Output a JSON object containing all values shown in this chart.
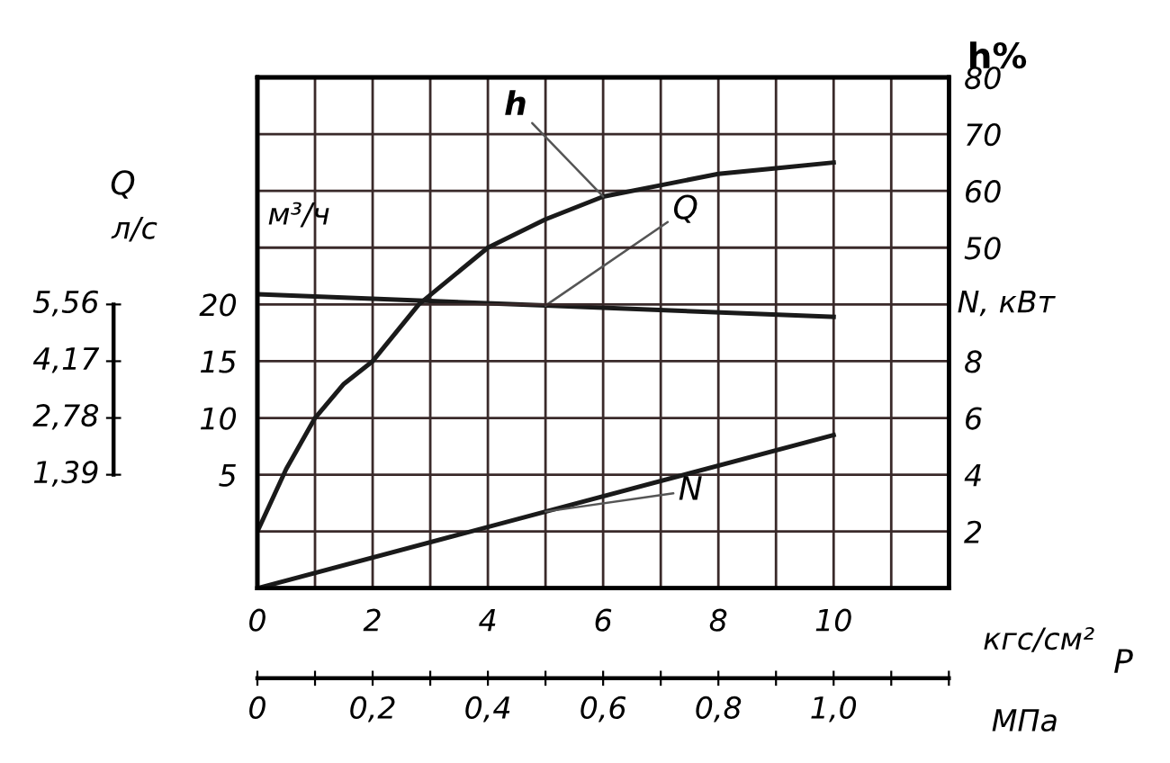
{
  "chart_data": {
    "type": "line",
    "xlabel": "кгс/см²",
    "ylabel": "м³/ч",
    "y2label": "h%",
    "y3label": "N, кВт",
    "x2label": "МПа",
    "annotations": [
      "Q",
      "P",
      "л/с",
      "1,39",
      "2,78",
      "4,17",
      "5,56"
    ],
    "x": [
      0,
      0.5,
      1,
      1.5,
      2,
      2.8,
      4,
      5,
      6,
      7,
      8,
      9,
      10
    ],
    "series": [
      {
        "name": "h",
        "color": "#1a1a1a",
        "axis": "y2",
        "values": [
          0,
          11,
          20,
          26,
          30,
          40,
          50,
          55,
          59,
          61,
          63,
          64,
          65
        ]
      },
      {
        "name": "Q",
        "color": "#1a1a1a",
        "axis": "y",
        "x": [
          0,
          5,
          10
        ],
        "values": [
          20.9,
          19.9,
          18.9
        ]
      },
      {
        "name": "N",
        "color": "#1a1a1a",
        "axis": "y3",
        "x": [
          0,
          5,
          10
        ],
        "values": [
          0,
          2.7,
          5.4
        ]
      }
    ],
    "xlim": [
      0,
      12
    ],
    "xticks": [
      0,
      {
        "value": 1,
        "label": null
      },
      2,
      {
        "value": 3,
        "label": null
      },
      4,
      {
        "value": 5,
        "label": null
      },
      6,
      {
        "value": 7,
        "label": null
      },
      8,
      {
        "value": 9,
        "label": null
      },
      10,
      {
        "value": 11,
        "label": null
      }
    ],
    "ylim": [
      -5,
      40
    ],
    "yticks": [
      5,
      10,
      15,
      20
    ],
    "y2lim": [
      -10,
      80
    ],
    "y2ticks": [
      {
        "value": -10,
        "label": null
      },
      {
        "value": 0,
        "label": null
      },
      {
        "value": 10,
        "label": null
      },
      {
        "value": 20,
        "label": null
      },
      {
        "value": 30,
        "label": null
      },
      {
        "value": 40,
        "label": null
      },
      50,
      60,
      70,
      80
    ],
    "y3lim": [
      0,
      18
    ],
    "y3ticks": [
      2,
      4,
      6,
      8
    ],
    "x2lim": [
      0,
      1.2
    ],
    "x2ticks": [
      0,
      {
        "value": 0.1,
        "label": null
      },
      {
        "value": 0.2,
        "label": "0,2"
      },
      {
        "value": 0.3,
        "label": null
      },
      {
        "value": 0.4,
        "label": "0,4"
      },
      {
        "value": 0.5,
        "label": null
      },
      {
        "value": 0.6,
        "label": "0,6"
      },
      {
        "value": 0.7,
        "label": null
      },
      {
        "value": 0.8,
        "label": "0,8"
      },
      {
        "value": 0.9,
        "label": null
      },
      {
        "value": 1.0,
        "label": "1,0"
      },
      {
        "value": 1.1,
        "label": null
      },
      {
        "value": 1.2,
        "label": null
      }
    ],
    "grid": true,
    "legend": false,
    "marker": "none",
    "line_style": "solid"
  }
}
